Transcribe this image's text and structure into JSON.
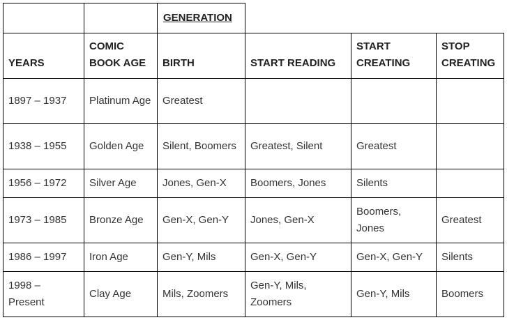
{
  "table": {
    "group_header": "GENERATION",
    "columns": [
      "YEARS",
      "COMIC BOOK AGE",
      "BIRTH",
      "START READING",
      "START CREATING",
      "STOP CREATING"
    ],
    "rows": [
      [
        "1897 – 1937",
        "Platinum Age",
        "Greatest",
        "",
        "",
        ""
      ],
      [
        "1938 – 1955",
        "Golden Age",
        "Silent, Boomers",
        "Greatest, Silent",
        "Greatest",
        ""
      ],
      [
        "1956 – 1972",
        "Silver Age",
        "Jones, Gen-X",
        "Boomers, Jones",
        "Silents",
        ""
      ],
      [
        "1973 – 1985",
        "Bronze Age",
        "Gen-X, Gen-Y",
        "Jones, Gen-X",
        "Boomers, Jones",
        "Greatest"
      ],
      [
        "1986 – 1997",
        "Iron Age",
        "Gen-Y, Mils",
        "Gen-X, Gen-Y",
        "Gen-X, Gen-Y",
        "Silents"
      ],
      [
        "1998 – Present",
        "Clay Age",
        "Mils, Zoomers",
        "Gen-Y, Mils, Zoomers",
        "Gen-Y, Mils",
        "Boomers"
      ]
    ]
  }
}
